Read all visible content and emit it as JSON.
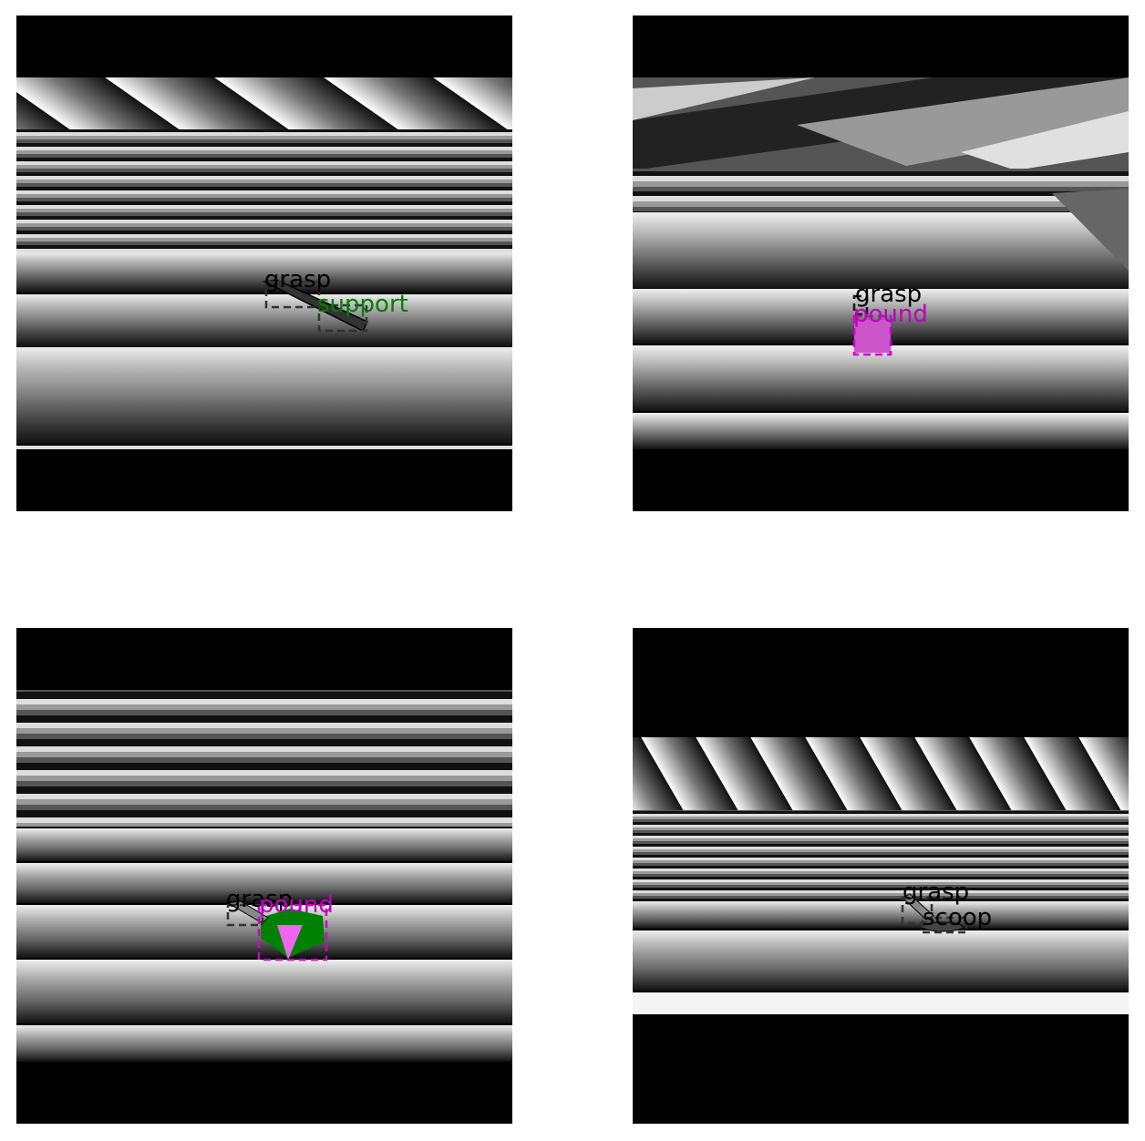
{
  "colors": {
    "grasp": "#000000",
    "support": "#008000",
    "pound": "#bf00bf",
    "scoop": "#000000",
    "box_dark": "#222222",
    "box_magenta": "#cc00cc"
  },
  "panels": [
    {
      "labels": [
        {
          "text": "grasp",
          "color_key": "grasp"
        },
        {
          "text": "support",
          "color_key": "support"
        }
      ]
    },
    {
      "labels": [
        {
          "text": "grasp",
          "color_key": "grasp"
        },
        {
          "text": "pound",
          "color_key": "pound"
        }
      ]
    },
    {
      "labels": [
        {
          "text": "grasp",
          "color_key": "grasp"
        },
        {
          "text": "pound",
          "color_key": "pound"
        }
      ]
    },
    {
      "labels": [
        {
          "text": "grasp",
          "color_key": "grasp"
        },
        {
          "text": "scoop",
          "color_key": "scoop"
        }
      ]
    }
  ]
}
